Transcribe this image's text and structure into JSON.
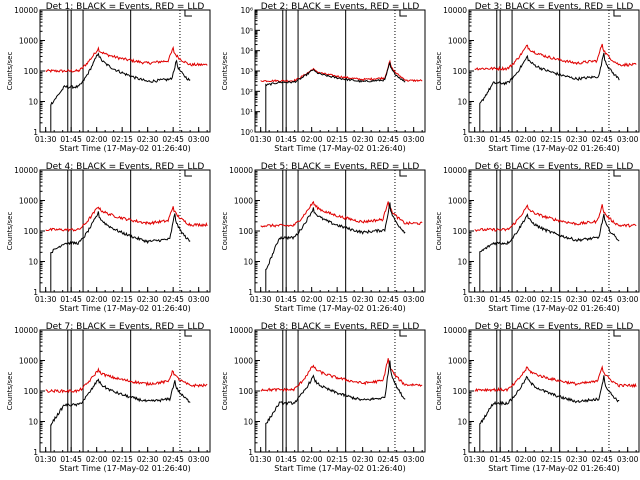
{
  "figure": {
    "title_template": "Det {n} BLACK = Events, RED = LLD",
    "xlabel": "Start Time (17-May-02 01:26:40)",
    "ylabel": "Counts/sec"
  },
  "colors": {
    "events": "#000000",
    "lld": "#e00000",
    "axes": "#000000"
  },
  "chart_data": [
    {
      "type": "line",
      "panel": 1,
      "title": "Det 1: BLACK = Events, RED = LLD",
      "x_ticks": [
        "01:30",
        "01:45",
        "02:00",
        "02:15",
        "02:30",
        "02:45",
        "03:00"
      ],
      "y_scale": "log",
      "ylim": [
        1,
        10000
      ],
      "y_ticks": [
        "1",
        "10",
        "100",
        "1000",
        "10000"
      ],
      "solid_vlines": [
        "01:43",
        "01:45",
        "01:52",
        "02:20"
      ],
      "dotted_vlines": [
        "02:49"
      ],
      "events_profile": {
        "start": "01:33",
        "end": "02:55",
        "pre": 8,
        "base": 30,
        "peak1": [
          "02:01",
          400
        ],
        "trough": [
          "02:30",
          45
        ],
        "peak2": [
          "02:47",
          220
        ]
      },
      "lld_profile": {
        "start": "01:30",
        "end": "03:05",
        "base": 100,
        "peak1": [
          "02:01",
          550
        ],
        "trough": [
          "02:30",
          180
        ],
        "peak2": [
          "02:45",
          550
        ]
      }
    },
    {
      "type": "line",
      "panel": 2,
      "title": "Det 2: BLACK = Events, RED = LLD",
      "x_ticks": [
        "01:30",
        "01:45",
        "02:00",
        "02:15",
        "02:30",
        "02:45",
        "03:00"
      ],
      "y_scale": "log",
      "ylim": [
        1,
        1000000
      ],
      "y_ticks": [
        "10⁰",
        "10¹",
        "10²",
        "10³",
        "10⁴",
        "10⁵",
        "10⁶"
      ],
      "solid_vlines": [
        "01:43",
        "01:45",
        "01:52",
        "02:20"
      ],
      "dotted_vlines": [
        "02:49"
      ],
      "events_profile": {
        "start": "01:33",
        "end": "02:55",
        "pre": 200,
        "base": 280,
        "peak1": [
          "02:01",
          1200
        ],
        "trough": [
          "02:30",
          300
        ],
        "peak2": [
          "02:46",
          2500
        ]
      },
      "lld_profile": {
        "start": "01:30",
        "end": "03:05",
        "base": 330,
        "peak1": [
          "02:01",
          1300
        ],
        "trough": [
          "02:30",
          380
        ],
        "peak2": [
          "02:46",
          3000
        ]
      }
    },
    {
      "type": "line",
      "panel": 3,
      "title": "Det 3: BLACK = Events, RED = LLD",
      "x_ticks": [
        "01:30",
        "01:45",
        "02:00",
        "02:15",
        "02:30",
        "02:45",
        "03:00"
      ],
      "y_scale": "log",
      "ylim": [
        1,
        10000
      ],
      "y_ticks": [
        "1",
        "10",
        "100",
        "1000",
        "10000"
      ],
      "solid_vlines": [
        "01:43",
        "01:45",
        "01:52",
        "02:20"
      ],
      "dotted_vlines": [
        "02:49"
      ],
      "events_profile": {
        "start": "01:33",
        "end": "02:55",
        "pre": 8,
        "base": 40,
        "peak1": [
          "02:01",
          300
        ],
        "trough": [
          "02:30",
          55
        ],
        "peak2": [
          "02:46",
          400
        ]
      },
      "lld_profile": {
        "start": "01:30",
        "end": "03:05",
        "base": 120,
        "peak1": [
          "02:01",
          700
        ],
        "trough": [
          "02:30",
          180
        ],
        "peak2": [
          "02:45",
          800
        ]
      }
    },
    {
      "type": "line",
      "panel": 4,
      "title": "Det 4: BLACK = Events, RED = LLD",
      "x_ticks": [
        "01:30",
        "01:45",
        "02:00",
        "02:15",
        "02:30",
        "02:45",
        "03:00"
      ],
      "y_scale": "log",
      "ylim": [
        1,
        10000
      ],
      "y_ticks": [
        "1",
        "10",
        "100",
        "1000",
        "10000"
      ],
      "solid_vlines": [
        "01:43",
        "01:45",
        "01:52",
        "02:20"
      ],
      "dotted_vlines": [
        "02:49"
      ],
      "events_profile": {
        "start": "01:33",
        "end": "02:55",
        "pre": 20,
        "base": 40,
        "peak1": [
          "02:01",
          400
        ],
        "trough": [
          "02:30",
          45
        ],
        "peak2": [
          "02:46",
          380
        ]
      },
      "lld_profile": {
        "start": "01:30",
        "end": "03:05",
        "base": 110,
        "peak1": [
          "02:01",
          650
        ],
        "trough": [
          "02:30",
          180
        ],
        "peak2": [
          "02:45",
          650
        ]
      }
    },
    {
      "type": "line",
      "panel": 5,
      "title": "Det 5: BLACK = Events, RED = LLD",
      "x_ticks": [
        "01:30",
        "01:45",
        "02:00",
        "02:15",
        "02:30",
        "02:45",
        "03:00"
      ],
      "y_scale": "log",
      "ylim": [
        1,
        10000
      ],
      "y_ticks": [
        "1",
        "10",
        "100",
        "1000",
        "10000"
      ],
      "solid_vlines": [
        "01:43",
        "01:45",
        "01:52",
        "02:20"
      ],
      "dotted_vlines": [
        "02:49"
      ],
      "events_profile": {
        "start": "01:33",
        "end": "02:55",
        "pre": 5,
        "base": 60,
        "peak1": [
          "02:01",
          550
        ],
        "trough": [
          "02:30",
          90
        ],
        "peak2": [
          "02:46",
          800
        ]
      },
      "lld_profile": {
        "start": "01:30",
        "end": "03:05",
        "base": 150,
        "peak1": [
          "02:01",
          900
        ],
        "trough": [
          "02:30",
          200
        ],
        "peak2": [
          "02:45",
          1000
        ]
      }
    },
    {
      "type": "line",
      "panel": 6,
      "title": "Det 6: BLACK = Events, RED = LLD",
      "x_ticks": [
        "01:30",
        "01:45",
        "02:00",
        "02:15",
        "02:30",
        "02:45",
        "03:00"
      ],
      "y_scale": "log",
      "ylim": [
        1,
        10000
      ],
      "y_ticks": [
        "1",
        "10",
        "100",
        "1000",
        "10000"
      ],
      "solid_vlines": [
        "01:43",
        "01:45",
        "01:52",
        "02:20"
      ],
      "dotted_vlines": [
        "02:49"
      ],
      "events_profile": {
        "start": "01:33",
        "end": "02:55",
        "pre": 20,
        "base": 40,
        "peak1": [
          "02:01",
          350
        ],
        "trough": [
          "02:30",
          50
        ],
        "peak2": [
          "02:46",
          350
        ]
      },
      "lld_profile": {
        "start": "01:30",
        "end": "03:05",
        "base": 110,
        "peak1": [
          "02:01",
          650
        ],
        "trough": [
          "02:30",
          170
        ],
        "peak2": [
          "02:45",
          700
        ]
      }
    },
    {
      "type": "line",
      "panel": 7,
      "title": "Det 7: BLACK = Events, RED = LLD",
      "x_ticks": [
        "01:30",
        "01:45",
        "02:00",
        "02:15",
        "02:30",
        "02:45",
        "03:00"
      ],
      "y_scale": "log",
      "ylim": [
        1,
        10000
      ],
      "y_ticks": [
        "1",
        "10",
        "100",
        "1000",
        "10000"
      ],
      "solid_vlines": [
        "01:43",
        "01:45",
        "01:52",
        "02:20"
      ],
      "dotted_vlines": [
        "02:49"
      ],
      "events_profile": {
        "start": "01:33",
        "end": "02:55",
        "pre": 8,
        "base": 35,
        "peak1": [
          "02:01",
          250
        ],
        "trough": [
          "02:30",
          45
        ],
        "peak2": [
          "02:46",
          220
        ]
      },
      "lld_profile": {
        "start": "01:30",
        "end": "03:05",
        "base": 100,
        "peak1": [
          "02:01",
          500
        ],
        "trough": [
          "02:30",
          170
        ],
        "peak2": [
          "02:45",
          480
        ]
      }
    },
    {
      "type": "line",
      "panel": 8,
      "title": "Det 8: BLACK = Events, RED = LLD",
      "x_ticks": [
        "01:30",
        "01:45",
        "02:00",
        "02:15",
        "02:30",
        "02:45",
        "03:00"
      ],
      "y_scale": "log",
      "ylim": [
        1,
        10000
      ],
      "y_ticks": [
        "1",
        "10",
        "100",
        "1000",
        "10000"
      ],
      "solid_vlines": [
        "01:43",
        "01:45",
        "01:52",
        "02:20"
      ],
      "dotted_vlines": [
        "02:49"
      ],
      "events_profile": {
        "start": "01:33",
        "end": "02:55",
        "pre": 8,
        "base": 40,
        "peak1": [
          "02:01",
          300
        ],
        "trough": [
          "02:30",
          50
        ],
        "peak2": [
          "02:46",
          1000
        ]
      },
      "lld_profile": {
        "start": "01:30",
        "end": "03:05",
        "base": 110,
        "peak1": [
          "02:01",
          700
        ],
        "trough": [
          "02:30",
          180
        ],
        "peak2": [
          "02:45",
          1200
        ]
      }
    },
    {
      "type": "line",
      "panel": 9,
      "title": "Det 9: BLACK = Events, RED = LLD",
      "x_ticks": [
        "01:30",
        "01:45",
        "02:00",
        "02:15",
        "02:30",
        "02:45",
        "03:00"
      ],
      "y_scale": "log",
      "ylim": [
        1,
        10000
      ],
      "y_ticks": [
        "1",
        "10",
        "100",
        "1000",
        "10000"
      ],
      "solid_vlines": [
        "01:43",
        "01:45",
        "01:52",
        "02:20"
      ],
      "dotted_vlines": [
        "02:49"
      ],
      "events_profile": {
        "start": "01:33",
        "end": "02:55",
        "pre": 8,
        "base": 40,
        "peak1": [
          "02:01",
          300
        ],
        "trough": [
          "02:30",
          45
        ],
        "peak2": [
          "02:46",
          300
        ]
      },
      "lld_profile": {
        "start": "01:30",
        "end": "03:05",
        "base": 110,
        "peak1": [
          "02:01",
          600
        ],
        "trough": [
          "02:30",
          170
        ],
        "peak2": [
          "02:45",
          650
        ]
      }
    }
  ]
}
